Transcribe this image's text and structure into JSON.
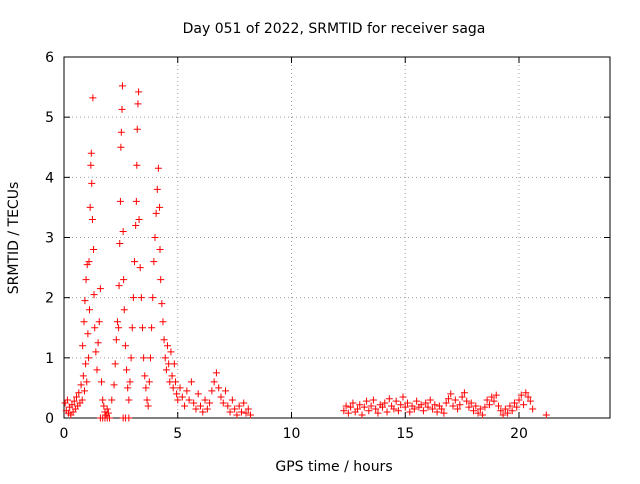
{
  "chart_data": {
    "type": "scatter",
    "title": "Day 051 of 2022, SRMTID for receiver saga",
    "xlabel": "GPS time / hours",
    "ylabel": "SRMTID / TECUs",
    "xlim": [
      0,
      24
    ],
    "ylim": [
      0,
      6
    ],
    "xticks": [
      0,
      5,
      10,
      15,
      20
    ],
    "yticks": [
      0,
      1,
      2,
      3,
      4,
      5,
      6
    ],
    "grid": true,
    "marker": "+",
    "color": "#ff0000",
    "series": [
      {
        "name": "SRMTID",
        "points": [
          [
            0.05,
            0.25
          ],
          [
            0.1,
            0.12
          ],
          [
            0.15,
            0.3
          ],
          [
            0.2,
            0.08
          ],
          [
            0.25,
            0.18
          ],
          [
            0.3,
            0.05
          ],
          [
            0.35,
            0.22
          ],
          [
            0.4,
            0.1
          ],
          [
            0.45,
            0.28
          ],
          [
            0.5,
            0.15
          ],
          [
            0.55,
            0.35
          ],
          [
            0.6,
            0.2
          ],
          [
            0.65,
            0.42
          ],
          [
            0.7,
            0.25
          ],
          [
            0.75,
            0.55
          ],
          [
            0.8,
            0.3
          ],
          [
            0.85,
            0.7
          ],
          [
            0.9,
            0.45
          ],
          [
            0.95,
            0.9
          ],
          [
            1.0,
            0.6
          ],
          [
            0.82,
            1.2
          ],
          [
            0.88,
            1.6
          ],
          [
            0.92,
            1.95
          ],
          [
            0.97,
            2.3
          ],
          [
            1.02,
            2.55
          ],
          [
            1.05,
            1.4
          ],
          [
            1.08,
            1.0
          ],
          [
            1.1,
            2.6
          ],
          [
            1.12,
            1.8
          ],
          [
            1.15,
            3.5
          ],
          [
            1.18,
            4.2
          ],
          [
            1.2,
            4.4
          ],
          [
            1.22,
            3.9
          ],
          [
            1.25,
            3.3
          ],
          [
            1.27,
            5.32
          ],
          [
            1.3,
            2.8
          ],
          [
            1.32,
            2.05
          ],
          [
            1.35,
            1.5
          ],
          [
            1.4,
            1.1
          ],
          [
            1.45,
            0.8
          ],
          [
            1.5,
            1.25
          ],
          [
            1.55,
            1.6
          ],
          [
            1.6,
            2.15
          ],
          [
            1.65,
            0.6
          ],
          [
            1.7,
            0.3
          ],
          [
            1.75,
            0.2
          ],
          [
            1.8,
            0.1
          ],
          [
            1.85,
            0.05
          ],
          [
            1.9,
            0.15
          ],
          [
            1.95,
            0.08
          ],
          [
            1.6,
            0.0
          ],
          [
            1.7,
            0.0
          ],
          [
            1.8,
            0.0
          ],
          [
            1.9,
            0.0
          ],
          [
            2.0,
            0.0
          ],
          [
            2.6,
            0.0
          ],
          [
            2.7,
            0.0
          ],
          [
            2.85,
            0.0
          ],
          [
            2.1,
            0.3
          ],
          [
            2.2,
            0.55
          ],
          [
            2.25,
            0.9
          ],
          [
            2.3,
            1.3
          ],
          [
            2.35,
            1.6
          ],
          [
            2.4,
            1.5
          ],
          [
            2.42,
            2.2
          ],
          [
            2.45,
            2.9
          ],
          [
            2.48,
            3.6
          ],
          [
            2.5,
            4.5
          ],
          [
            2.52,
            4.75
          ],
          [
            2.55,
            5.13
          ],
          [
            2.57,
            5.52
          ],
          [
            2.6,
            3.1
          ],
          [
            2.62,
            2.3
          ],
          [
            2.65,
            1.8
          ],
          [
            2.7,
            1.2
          ],
          [
            2.75,
            0.8
          ],
          [
            2.8,
            0.5
          ],
          [
            2.85,
            0.3
          ],
          [
            2.9,
            0.6
          ],
          [
            2.95,
            1.0
          ],
          [
            3.0,
            1.5
          ],
          [
            3.05,
            2.0
          ],
          [
            3.1,
            2.6
          ],
          [
            3.15,
            3.2
          ],
          [
            3.18,
            3.6
          ],
          [
            3.2,
            4.2
          ],
          [
            3.22,
            4.8
          ],
          [
            3.25,
            5.22
          ],
          [
            3.28,
            5.42
          ],
          [
            3.3,
            3.3
          ],
          [
            3.35,
            2.5
          ],
          [
            3.4,
            2.0
          ],
          [
            3.45,
            1.5
          ],
          [
            3.5,
            1.0
          ],
          [
            3.55,
            0.7
          ],
          [
            3.6,
            0.5
          ],
          [
            3.65,
            0.3
          ],
          [
            3.7,
            0.2
          ],
          [
            3.75,
            0.6
          ],
          [
            3.8,
            1.0
          ],
          [
            3.85,
            1.5
          ],
          [
            3.9,
            2.0
          ],
          [
            3.95,
            2.6
          ],
          [
            4.0,
            3.0
          ],
          [
            4.05,
            3.4
          ],
          [
            4.1,
            3.8
          ],
          [
            4.15,
            4.15
          ],
          [
            4.2,
            3.5
          ],
          [
            4.22,
            2.8
          ],
          [
            4.25,
            2.3
          ],
          [
            4.3,
            1.9
          ],
          [
            4.35,
            1.6
          ],
          [
            4.4,
            1.3
          ],
          [
            4.45,
            1.0
          ],
          [
            4.5,
            0.8
          ],
          [
            4.55,
            1.2
          ],
          [
            4.6,
            0.9
          ],
          [
            4.65,
            0.6
          ],
          [
            4.7,
            1.1
          ],
          [
            4.75,
            0.7
          ],
          [
            4.8,
            0.5
          ],
          [
            4.85,
            0.9
          ],
          [
            4.9,
            0.6
          ],
          [
            4.95,
            0.4
          ],
          [
            5.0,
            0.3
          ],
          [
            5.1,
            0.5
          ],
          [
            5.2,
            0.35
          ],
          [
            5.3,
            0.2
          ],
          [
            5.4,
            0.45
          ],
          [
            5.5,
            0.3
          ],
          [
            5.6,
            0.6
          ],
          [
            5.7,
            0.25
          ],
          [
            5.8,
            0.15
          ],
          [
            5.9,
            0.4
          ],
          [
            6.0,
            0.2
          ],
          [
            6.1,
            0.1
          ],
          [
            6.2,
            0.3
          ],
          [
            6.3,
            0.15
          ],
          [
            6.4,
            0.25
          ],
          [
            6.5,
            0.45
          ],
          [
            6.6,
            0.6
          ],
          [
            6.7,
            0.75
          ],
          [
            6.8,
            0.5
          ],
          [
            6.9,
            0.35
          ],
          [
            7.0,
            0.25
          ],
          [
            7.1,
            0.45
          ],
          [
            7.2,
            0.2
          ],
          [
            7.3,
            0.1
          ],
          [
            7.4,
            0.3
          ],
          [
            7.5,
            0.15
          ],
          [
            7.6,
            0.05
          ],
          [
            7.7,
            0.2
          ],
          [
            7.8,
            0.1
          ],
          [
            7.9,
            0.25
          ],
          [
            8.0,
            0.08
          ],
          [
            8.1,
            0.15
          ],
          [
            8.2,
            0.05
          ],
          [
            12.3,
            0.12
          ],
          [
            12.4,
            0.2
          ],
          [
            12.5,
            0.08
          ],
          [
            12.6,
            0.18
          ],
          [
            12.7,
            0.25
          ],
          [
            12.8,
            0.1
          ],
          [
            12.9,
            0.15
          ],
          [
            13.0,
            0.22
          ],
          [
            13.1,
            0.05
          ],
          [
            13.2,
            0.18
          ],
          [
            13.3,
            0.28
          ],
          [
            13.4,
            0.12
          ],
          [
            13.5,
            0.2
          ],
          [
            13.6,
            0.3
          ],
          [
            13.7,
            0.15
          ],
          [
            13.8,
            0.08
          ],
          [
            13.9,
            0.22
          ],
          [
            14.0,
            0.18
          ],
          [
            14.1,
            0.25
          ],
          [
            14.2,
            0.1
          ],
          [
            14.3,
            0.32
          ],
          [
            14.4,
            0.2
          ],
          [
            14.5,
            0.15
          ],
          [
            14.6,
            0.28
          ],
          [
            14.7,
            0.12
          ],
          [
            14.8,
            0.22
          ],
          [
            14.9,
            0.35
          ],
          [
            15.0,
            0.18
          ],
          [
            15.1,
            0.25
          ],
          [
            15.2,
            0.1
          ],
          [
            15.3,
            0.2
          ],
          [
            15.4,
            0.15
          ],
          [
            15.5,
            0.28
          ],
          [
            15.6,
            0.18
          ],
          [
            15.7,
            0.22
          ],
          [
            15.8,
            0.12
          ],
          [
            15.9,
            0.25
          ],
          [
            16.0,
            0.18
          ],
          [
            16.1,
            0.3
          ],
          [
            16.2,
            0.15
          ],
          [
            16.3,
            0.22
          ],
          [
            16.4,
            0.1
          ],
          [
            16.5,
            0.2
          ],
          [
            16.6,
            0.15
          ],
          [
            16.7,
            0.08
          ],
          [
            16.8,
            0.25
          ],
          [
            16.9,
            0.32
          ],
          [
            17.0,
            0.4
          ],
          [
            17.1,
            0.2
          ],
          [
            17.2,
            0.3
          ],
          [
            17.3,
            0.15
          ],
          [
            17.4,
            0.22
          ],
          [
            17.5,
            0.35
          ],
          [
            17.6,
            0.42
          ],
          [
            17.7,
            0.28
          ],
          [
            17.8,
            0.18
          ],
          [
            17.9,
            0.25
          ],
          [
            18.0,
            0.12
          ],
          [
            18.1,
            0.2
          ],
          [
            18.2,
            0.08
          ],
          [
            18.3,
            0.15
          ],
          [
            18.4,
            0.05
          ],
          [
            18.5,
            0.18
          ],
          [
            18.6,
            0.3
          ],
          [
            18.7,
            0.22
          ],
          [
            18.8,
            0.35
          ],
          [
            18.9,
            0.28
          ],
          [
            19.0,
            0.38
          ],
          [
            19.1,
            0.2
          ],
          [
            19.2,
            0.12
          ],
          [
            19.3,
            0.05
          ],
          [
            19.4,
            0.15
          ],
          [
            19.5,
            0.08
          ],
          [
            19.6,
            0.2
          ],
          [
            19.7,
            0.12
          ],
          [
            19.8,
            0.25
          ],
          [
            19.9,
            0.18
          ],
          [
            20.0,
            0.3
          ],
          [
            20.1,
            0.38
          ],
          [
            20.2,
            0.22
          ],
          [
            20.3,
            0.42
          ],
          [
            20.4,
            0.35
          ],
          [
            20.5,
            0.28
          ],
          [
            20.6,
            0.15
          ],
          [
            21.2,
            0.05
          ]
        ]
      }
    ]
  }
}
